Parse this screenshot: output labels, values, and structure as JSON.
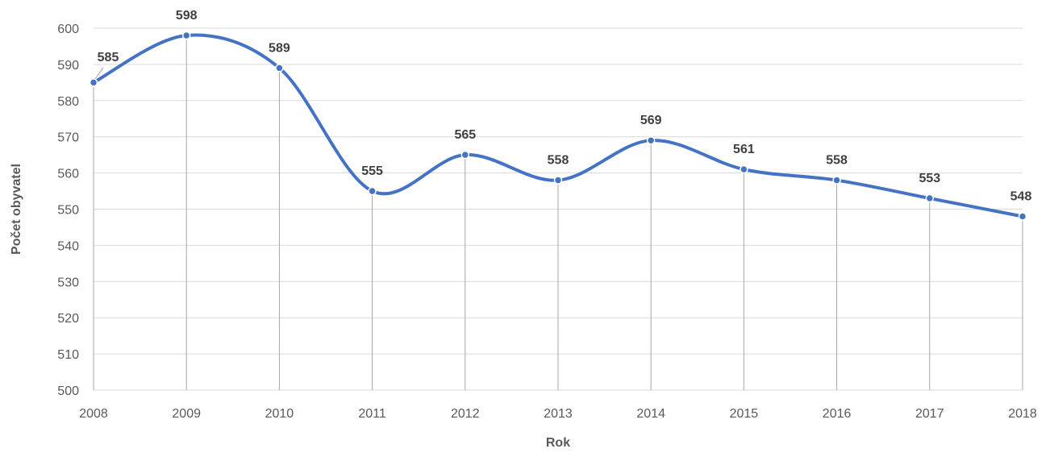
{
  "chart_data": {
    "type": "line",
    "xlabel": "Rok",
    "ylabel": "Počet obyvatel",
    "categories": [
      "2008",
      "2009",
      "2010",
      "2011",
      "2012",
      "2013",
      "2014",
      "2015",
      "2016",
      "2017",
      "2018"
    ],
    "series": [
      {
        "values": [
          585,
          598,
          589,
          555,
          565,
          558,
          569,
          561,
          558,
          553,
          548
        ]
      }
    ],
    "data_labels": [
      "585",
      "598",
      "589",
      "555",
      "565",
      "558",
      "569",
      "561",
      "558",
      "553",
      "548"
    ],
    "ylim": [
      500,
      600
    ],
    "yticks": [
      "500",
      "510",
      "520",
      "530",
      "540",
      "550",
      "560",
      "570",
      "580",
      "590",
      "600"
    ],
    "grid": true,
    "drop_lines": true,
    "smooth": true,
    "legend": "none",
    "colors": {
      "line": "#4472C4",
      "grid": "#D9D9D9",
      "drop_line": "#A6A6A6",
      "text": "#595959"
    }
  }
}
